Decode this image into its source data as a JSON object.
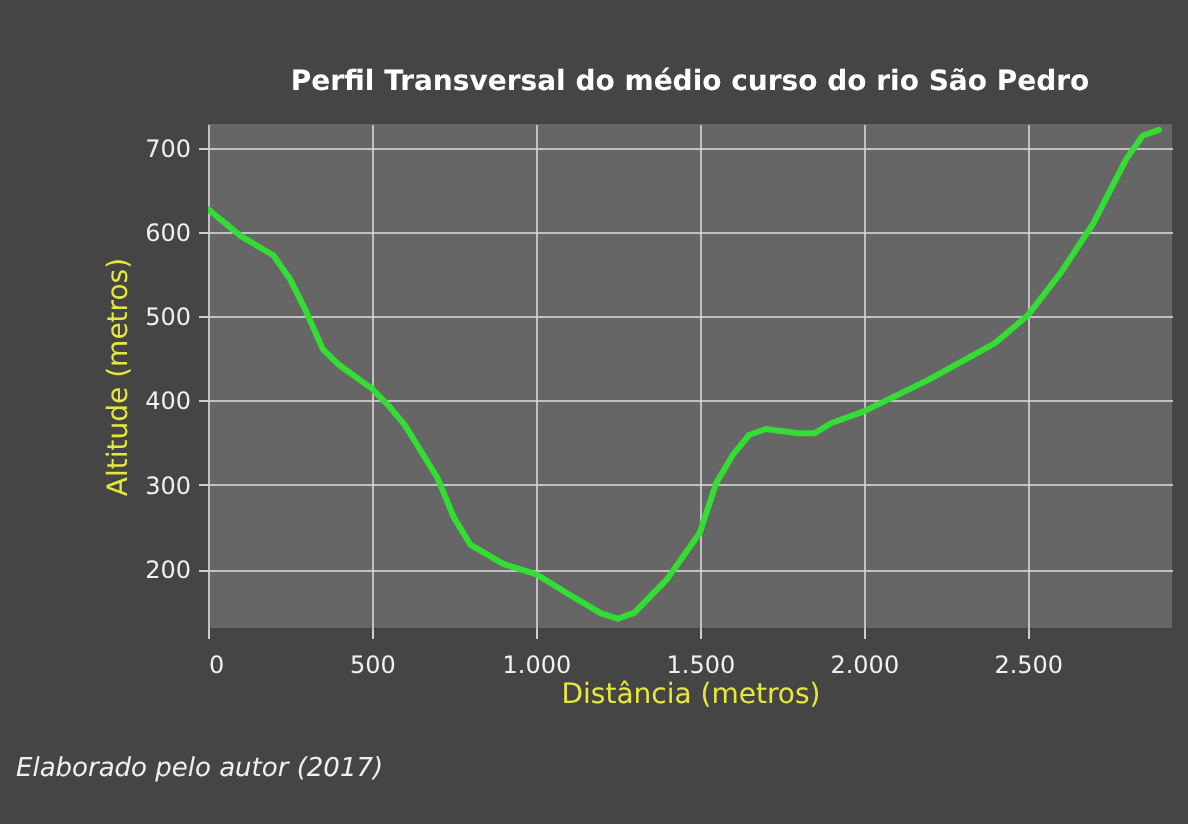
{
  "chart_data": {
    "type": "line",
    "title": "Perfil Transversal do médio curso do rio São Pedro",
    "xlabel": "Distância (metros)",
    "ylabel": "Altitude (metros)",
    "annotations": [
      "Elaborado pelo autor (2017)"
    ],
    "x": [
      0,
      100,
      200,
      250,
      300,
      350,
      400,
      500,
      550,
      600,
      700,
      750,
      800,
      900,
      1000,
      1100,
      1200,
      1250,
      1300,
      1400,
      1500,
      1550,
      1600,
      1650,
      1700,
      1800,
      1850,
      1900,
      2000,
      2200,
      2400,
      2500,
      2600,
      2700,
      2800,
      2850,
      2900
    ],
    "series": [
      {
        "color": "#33dd33",
        "values": [
          627,
          595,
          572,
          544,
          505,
          461,
          442,
          414,
          394,
          371,
          308,
          261,
          229,
          206,
          194,
          170,
          147,
          141,
          148,
          188,
          243,
          302,
          335,
          359,
          366,
          361,
          361,
          373,
          387,
          425,
          468,
          501,
          551,
          610,
          686,
          714,
          721
        ]
      }
    ],
    "xlim": [
      0,
      2940
    ],
    "ylim": [
      130,
      728
    ],
    "xticks": [
      0,
      {
        "value": 500,
        "label": "500"
      },
      {
        "value": 1000,
        "label": "1.000"
      },
      {
        "value": 1500,
        "label": "1.500"
      },
      {
        "value": 2000,
        "label": "2.000"
      },
      {
        "value": 2500,
        "label": "2.500"
      }
    ],
    "yticks": [
      200,
      300,
      400,
      500,
      600,
      700
    ],
    "grid": true,
    "legend": false
  }
}
